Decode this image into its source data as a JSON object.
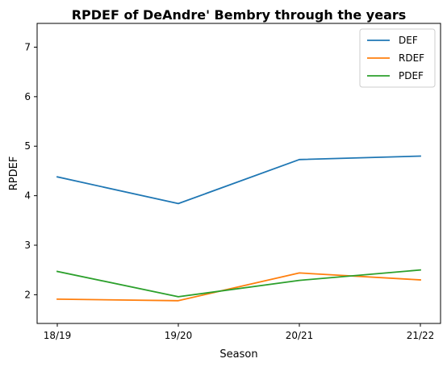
{
  "chart_data": {
    "type": "line",
    "title": "RPDEF of DeAndre' Bembry through the years",
    "xlabel": "Season",
    "ylabel": "RPDEF",
    "categories": [
      "18/19",
      "19/20",
      "20/21",
      "21/22"
    ],
    "ylim": [
      1.42,
      7.48
    ],
    "yticks": [
      2,
      3,
      4,
      5,
      6,
      7
    ],
    "grid": false,
    "legend_position": "top-right",
    "series": [
      {
        "name": "DEF",
        "color": "#1f77b4",
        "values": [
          4.38,
          3.84,
          4.73,
          4.8
        ]
      },
      {
        "name": "RDEF",
        "color": "#ff7f0e",
        "values": [
          1.91,
          1.88,
          2.44,
          2.3
        ]
      },
      {
        "name": "PDEF",
        "color": "#2ca02c",
        "values": [
          2.47,
          1.96,
          2.29,
          2.5
        ]
      }
    ]
  }
}
